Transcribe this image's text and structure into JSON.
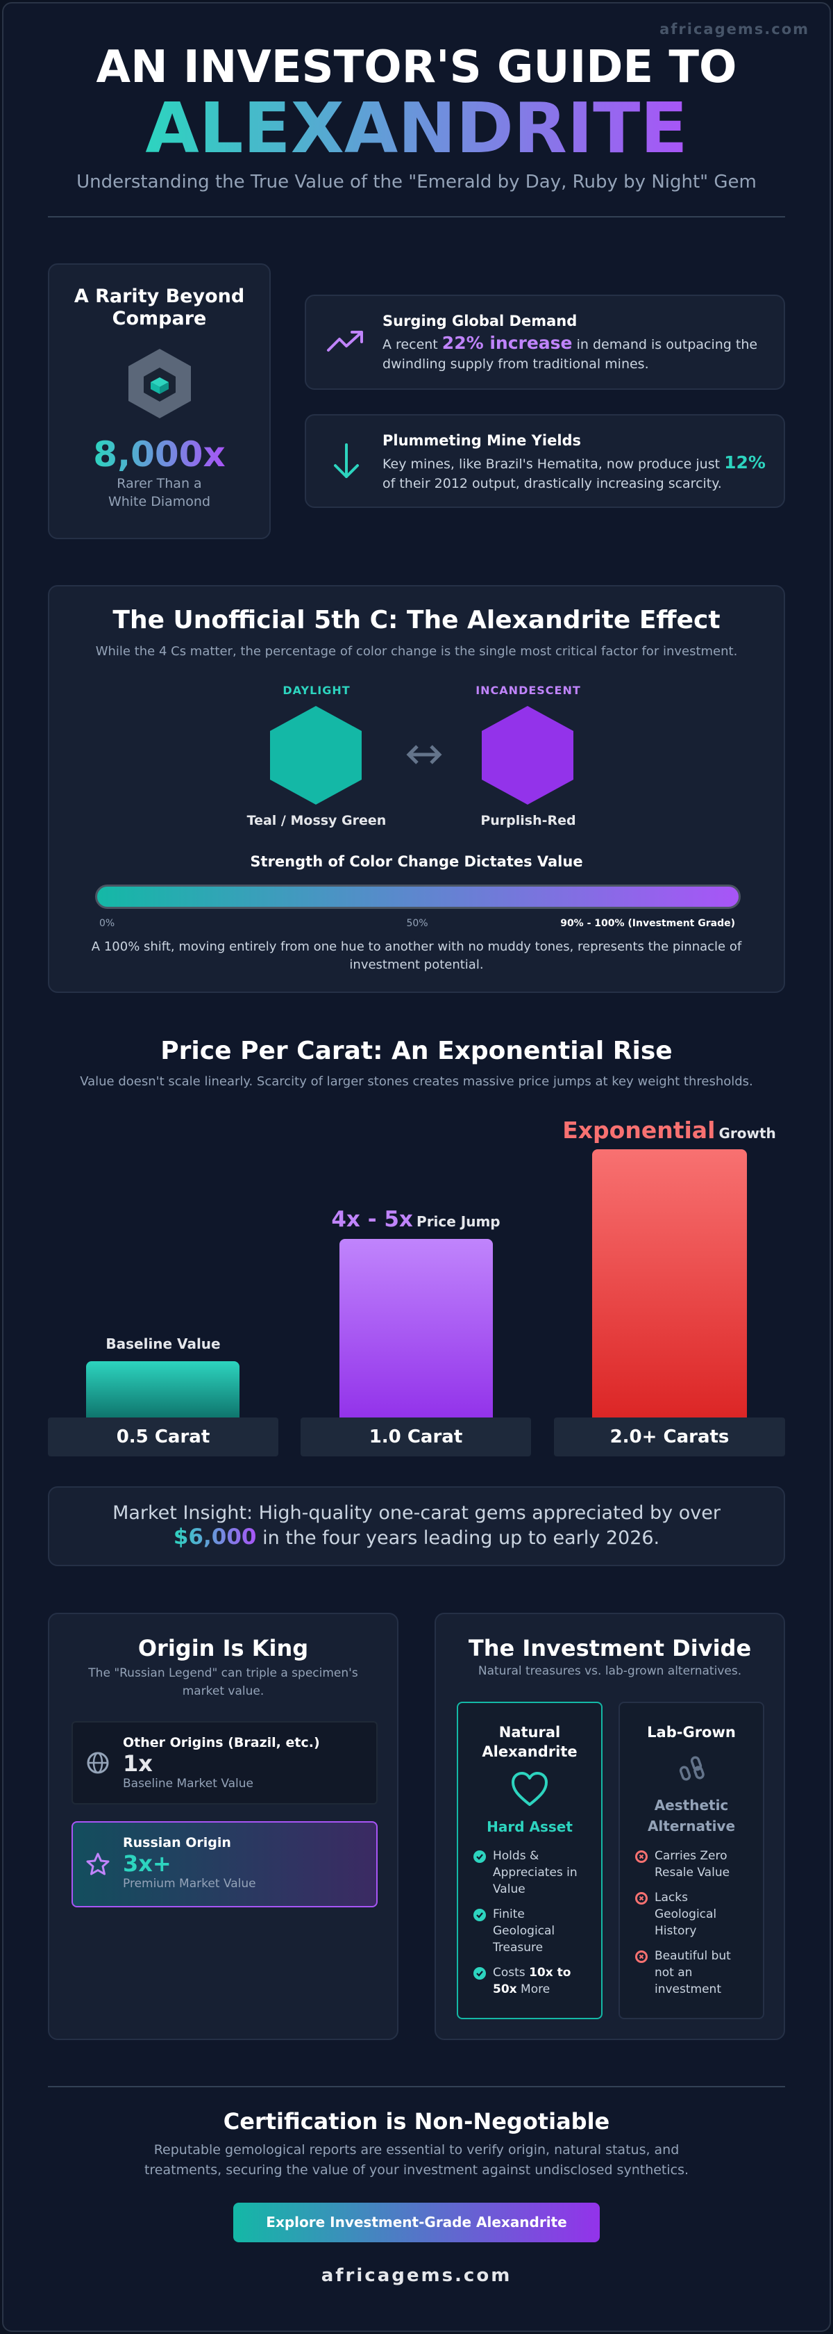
{
  "brand_top": "africagems.com",
  "header": {
    "title_line1": "AN INVESTOR'S GUIDE TO",
    "title_line2": "ALEXANDRITE",
    "subtitle": "Understanding the True Value of the \"Emerald by Day, Ruby by Night\" Gem"
  },
  "rarity": {
    "title": "A Rarity Beyond Compare",
    "stat": "8,000x",
    "caption": "Rarer Than a White Diamond"
  },
  "trends": [
    {
      "title": "Surging Global Demand",
      "text_before": "A recent",
      "highlight": "22% increase",
      "text_after": "in demand is outpacing the dwindling supply from traditional mines."
    },
    {
      "title": "Plummeting Mine Yields",
      "text_before": "Key mines, like Brazil's Hematita, now produce just",
      "highlight": "12%",
      "text_after": "of their 2012 output, drastically increasing scarcity."
    }
  ],
  "effect": {
    "title": "The Unofficial 5th C: The Alexandrite Effect",
    "subtitle": "While the 4 Cs matter, the percentage of color change is the single most critical factor for investment.",
    "states": [
      {
        "label": "DAYLIGHT",
        "color_name": "Teal / Mossy Green"
      },
      {
        "label": "INCANDESCENT",
        "color_name": "Purplish-Red"
      }
    ],
    "scale_title": "Strength of Color Change Dictates Value",
    "scale_ticks": [
      "0%",
      "50%",
      "90% - 100% (Investment Grade)"
    ],
    "note": "A 100% shift, moving entirely from one hue to another with no muddy tones, represents the pinnacle of investment potential."
  },
  "price": {
    "title": "Price Per Carat: An Exponential Rise",
    "subtitle": "Value doesn't scale linearly. Scarcity of larger stones creates massive price jumps at key weight thresholds.",
    "tiers": [
      {
        "label": "Baseline Value",
        "carat": "0.5 Carat"
      },
      {
        "highlight": "4x - 5x",
        "label": "Price Jump",
        "carat": "1.0 Carat"
      },
      {
        "highlight": "Exponential",
        "label": "Growth",
        "carat": "2.0+ Carats"
      }
    ]
  },
  "insight": {
    "text_before": "Market Insight: High-quality one-carat gems appreciated by over",
    "highlight": "$6,000",
    "text_after": "in the four years leading up to early 2026."
  },
  "origin": {
    "title": "Origin Is King",
    "subtitle": "The \"Russian Legend\" can triple a specimen's market value.",
    "items": [
      {
        "name": "Other Origins (Brazil, etc.)",
        "multiplier": "1x",
        "caption": "Baseline Market Value"
      },
      {
        "name": "Russian Origin",
        "multiplier": "3x+",
        "caption": "Premium Market Value"
      }
    ]
  },
  "divide": {
    "title": "The Investment Divide",
    "subtitle": "Natural treasures vs. lab-grown alternatives.",
    "natural": {
      "title": "Natural Alexandrite",
      "tag": "Hard Asset",
      "points": [
        "Holds & Appreciates in Value",
        "Finite Geological Treasure",
        {
          "before": "Costs",
          "bold": "10x to 50x",
          "after": "More"
        }
      ]
    },
    "lab": {
      "title": "Lab-Grown",
      "tag": "Aesthetic Alternative",
      "points": [
        "Carries Zero Resale Value",
        "Lacks Geological History",
        "Beautiful but not an investment"
      ]
    }
  },
  "certification": {
    "title": "Certification is Non-Negotiable",
    "text": "Reputable gemological reports are essential to verify origin, natural status, and treatments, securing the value of your investment against undisclosed synthetics.",
    "button": "Explore Investment-Grade Alexandrite"
  },
  "footer": "africagems.com"
}
